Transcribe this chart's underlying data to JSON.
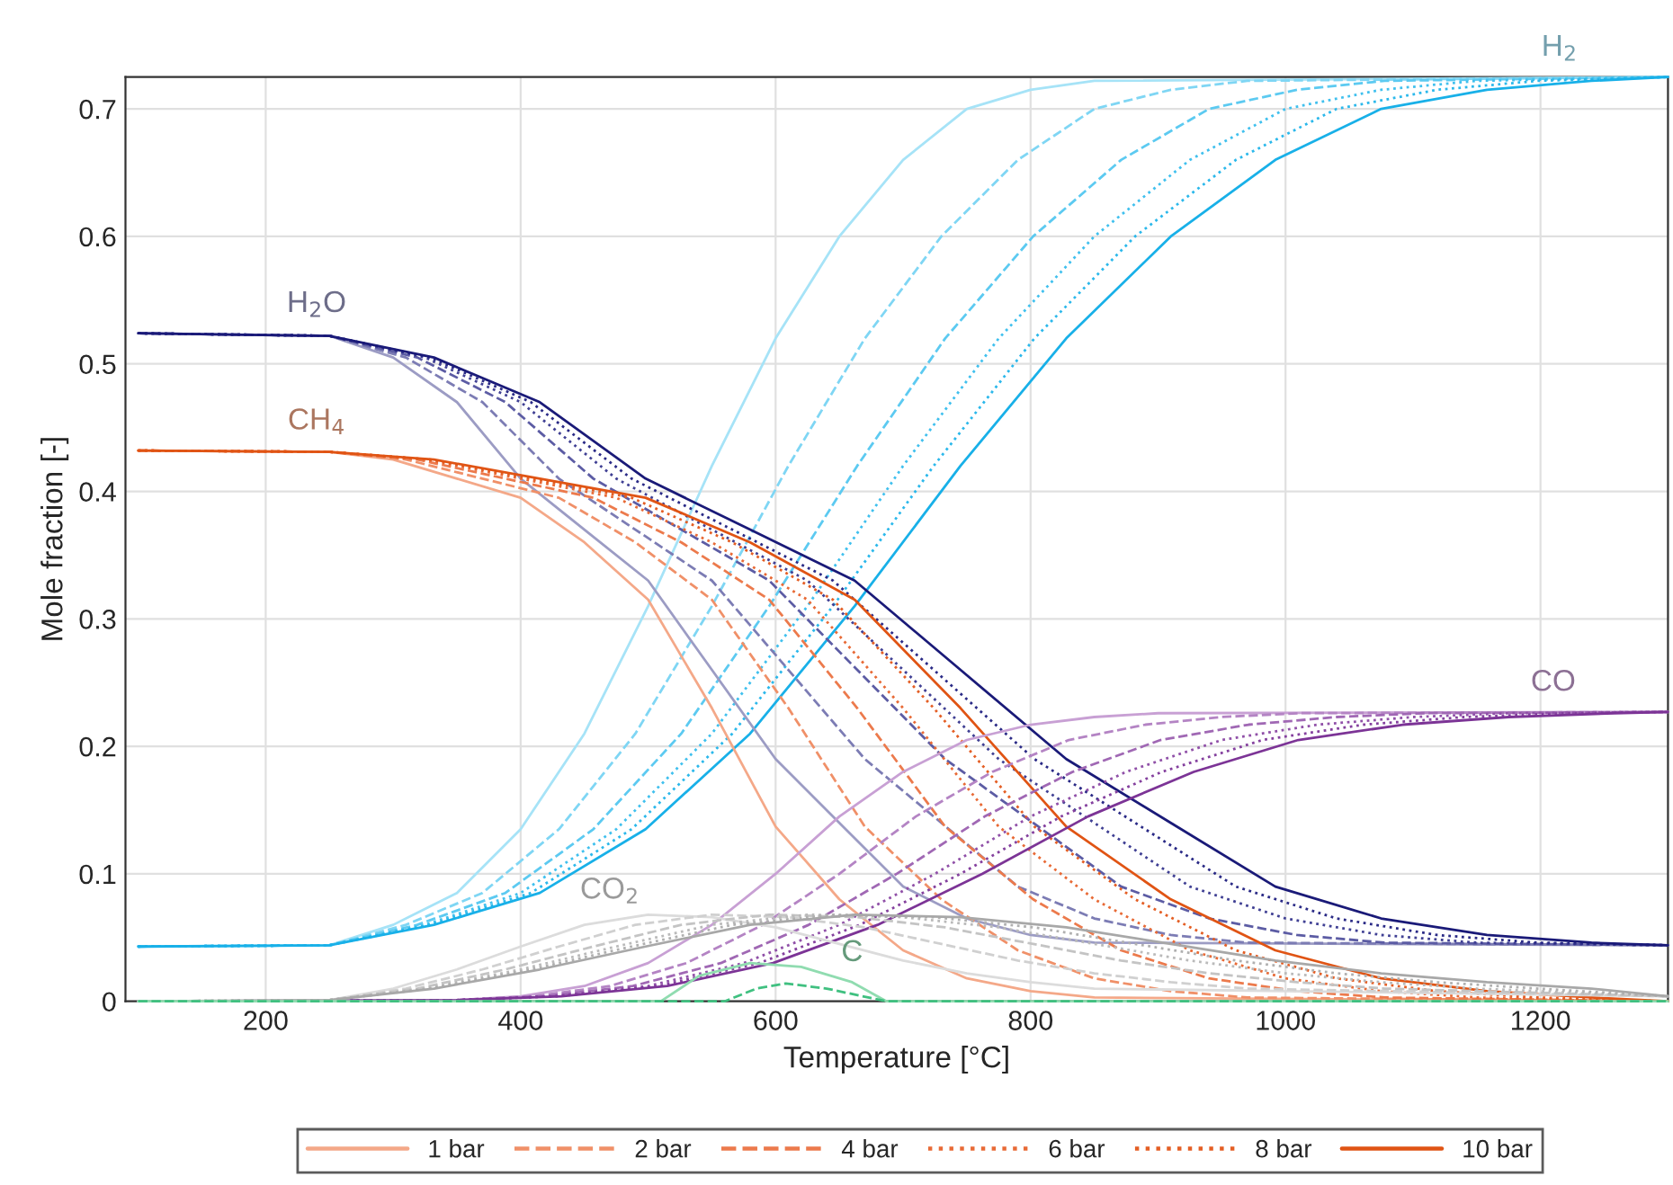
{
  "chart_data": {
    "type": "line",
    "xlabel": "Temperature [°C]",
    "ylabel": "Mole fraction [-]",
    "xlim": [
      90,
      1300
    ],
    "ylim": [
      0,
      0.725
    ],
    "xticks": [
      200,
      400,
      600,
      800,
      1000,
      1200
    ],
    "yticks": [
      0,
      0.1,
      0.2,
      0.3,
      0.4,
      0.5,
      0.6,
      0.7
    ],
    "grid": true,
    "legend": "bottom",
    "annotations": [
      {
        "text": "H$_{2}$",
        "x": 1215,
        "y": 0.725
      },
      {
        "text": "H$_{2}$O",
        "x": 240,
        "y": 0.524
      },
      {
        "text": "CH$_{4}$",
        "x": 240,
        "y": 0.432
      },
      {
        "text": "CO",
        "x": 1210,
        "y": 0.227
      },
      {
        "text": "CO$_{2}$",
        "x": 470,
        "y": 0.064
      },
      {
        "text": "C",
        "x": 660,
        "y": 0.015
      }
    ],
    "series": [
      {
        "type": "line",
        "color": "#a6e3f7",
        "line_style": "solid",
        "x": [
          100,
          250,
          300,
          350,
          400,
          450,
          500,
          550,
          600,
          650,
          700,
          750,
          800,
          850,
          1300
        ],
        "values": [
          0.043,
          0.044,
          0.06,
          0.085,
          0.135,
          0.21,
          0.31,
          0.42,
          0.52,
          0.6,
          0.66,
          0.7,
          0.715,
          0.722,
          0.725
        ]
      },
      {
        "type": "line",
        "color": "#7fd6f4",
        "line_style": "dashed",
        "x": [
          100,
          250,
          310,
          370,
          430,
          490,
          550,
          610,
          670,
          730,
          790,
          850,
          910,
          970,
          1300
        ],
        "values": [
          0.043,
          0.044,
          0.06,
          0.085,
          0.135,
          0.21,
          0.31,
          0.42,
          0.52,
          0.6,
          0.66,
          0.7,
          0.715,
          0.722,
          0.725
        ]
      },
      {
        "type": "line",
        "color": "#5ccaf1",
        "line_style": "dashed",
        "x": [
          100,
          250,
          319,
          388,
          457,
          526,
          595,
          664,
          733,
          802,
          871,
          940,
          1009,
          1078,
          1300
        ],
        "values": [
          0.043,
          0.044,
          0.06,
          0.085,
          0.135,
          0.21,
          0.31,
          0.42,
          0.52,
          0.6,
          0.66,
          0.7,
          0.715,
          0.722,
          0.725
        ]
      },
      {
        "type": "line",
        "color": "#40c0ee",
        "line_style": "dotted",
        "x": [
          100,
          250,
          325,
          400,
          475,
          550,
          625,
          700,
          775,
          850,
          925,
          1000,
          1075,
          1150,
          1300
        ],
        "values": [
          0.043,
          0.044,
          0.06,
          0.085,
          0.135,
          0.21,
          0.31,
          0.42,
          0.52,
          0.6,
          0.66,
          0.7,
          0.715,
          0.722,
          0.725
        ]
      },
      {
        "type": "line",
        "color": "#2bb8eb",
        "line_style": "dotted",
        "x": [
          100,
          250,
          329,
          408,
          487,
          566,
          645,
          724,
          803,
          882,
          961,
          1040,
          1119,
          1198,
          1300
        ],
        "values": [
          0.043,
          0.044,
          0.06,
          0.085,
          0.135,
          0.21,
          0.31,
          0.42,
          0.52,
          0.6,
          0.66,
          0.7,
          0.715,
          0.722,
          0.725
        ]
      },
      {
        "type": "line",
        "color": "#18b0e8",
        "line_style": "solid",
        "x": [
          100,
          250,
          332,
          415,
          498,
          580,
          662,
          745,
          828,
          910,
          992,
          1075,
          1158,
          1240,
          1300
        ],
        "values": [
          0.043,
          0.044,
          0.06,
          0.085,
          0.135,
          0.21,
          0.31,
          0.42,
          0.52,
          0.6,
          0.66,
          0.7,
          0.715,
          0.722,
          0.725
        ]
      },
      {
        "type": "line",
        "color": "#9c9cc4",
        "line_style": "solid",
        "x": [
          100,
          250,
          300,
          350,
          400,
          450,
          500,
          550,
          600,
          650,
          700,
          750,
          800,
          850,
          1300
        ],
        "values": [
          0.524,
          0.522,
          0.505,
          0.47,
          0.41,
          0.37,
          0.33,
          0.26,
          0.19,
          0.14,
          0.09,
          0.065,
          0.052,
          0.046,
          0.044
        ]
      },
      {
        "type": "line",
        "color": "#7c7cb4",
        "line_style": "dashed",
        "x": [
          100,
          250,
          310,
          370,
          430,
          490,
          550,
          610,
          670,
          730,
          790,
          850,
          910,
          970,
          1300
        ],
        "values": [
          0.524,
          0.522,
          0.505,
          0.47,
          0.41,
          0.37,
          0.33,
          0.26,
          0.19,
          0.14,
          0.09,
          0.065,
          0.052,
          0.046,
          0.044
        ]
      },
      {
        "type": "line",
        "color": "#5c5ca4",
        "line_style": "dashed",
        "x": [
          100,
          250,
          319,
          388,
          457,
          526,
          595,
          664,
          733,
          802,
          871,
          940,
          1009,
          1078,
          1300
        ],
        "values": [
          0.524,
          0.522,
          0.505,
          0.47,
          0.41,
          0.37,
          0.33,
          0.26,
          0.19,
          0.14,
          0.09,
          0.065,
          0.052,
          0.046,
          0.044
        ]
      },
      {
        "type": "line",
        "color": "#404094",
        "line_style": "dotted",
        "x": [
          100,
          250,
          325,
          400,
          475,
          550,
          625,
          700,
          775,
          850,
          925,
          1000,
          1075,
          1150,
          1300
        ],
        "values": [
          0.524,
          0.522,
          0.505,
          0.47,
          0.41,
          0.37,
          0.33,
          0.26,
          0.19,
          0.14,
          0.09,
          0.065,
          0.052,
          0.046,
          0.044
        ]
      },
      {
        "type": "line",
        "color": "#2a2a86",
        "line_style": "dotted",
        "x": [
          100,
          250,
          329,
          408,
          487,
          566,
          645,
          724,
          803,
          882,
          961,
          1040,
          1119,
          1198,
          1300
        ],
        "values": [
          0.524,
          0.522,
          0.505,
          0.47,
          0.41,
          0.37,
          0.33,
          0.26,
          0.19,
          0.14,
          0.09,
          0.065,
          0.052,
          0.046,
          0.044
        ]
      },
      {
        "type": "line",
        "color": "#1a1a78",
        "line_style": "solid",
        "x": [
          100,
          250,
          332,
          415,
          498,
          580,
          662,
          745,
          828,
          910,
          992,
          1075,
          1158,
          1240,
          1300
        ],
        "values": [
          0.524,
          0.522,
          0.505,
          0.47,
          0.41,
          0.37,
          0.33,
          0.26,
          0.19,
          0.14,
          0.09,
          0.065,
          0.052,
          0.046,
          0.044
        ]
      },
      {
        "type": "line",
        "name": "1 bar",
        "color": "#f4a888",
        "line_style": "solid",
        "x": [
          100,
          250,
          300,
          350,
          400,
          450,
          500,
          550,
          600,
          650,
          700,
          750,
          800,
          850,
          1300
        ],
        "values": [
          0.432,
          0.431,
          0.425,
          0.41,
          0.395,
          0.36,
          0.315,
          0.23,
          0.137,
          0.08,
          0.04,
          0.018,
          0.008,
          0.003,
          0
        ]
      },
      {
        "type": "line",
        "name": "2 bar",
        "color": "#f09068",
        "line_style": "dashed",
        "x": [
          100,
          250,
          310,
          370,
          430,
          490,
          550,
          610,
          670,
          730,
          790,
          850,
          910,
          970,
          1300
        ],
        "values": [
          0.432,
          0.431,
          0.425,
          0.41,
          0.395,
          0.36,
          0.315,
          0.23,
          0.137,
          0.08,
          0.04,
          0.018,
          0.008,
          0.003,
          0
        ]
      },
      {
        "type": "line",
        "name": "4 bar",
        "color": "#ec7a4c",
        "line_style": "dashed",
        "x": [
          100,
          250,
          319,
          388,
          457,
          526,
          595,
          664,
          733,
          802,
          871,
          940,
          1009,
          1078,
          1300
        ],
        "values": [
          0.432,
          0.431,
          0.425,
          0.41,
          0.395,
          0.36,
          0.315,
          0.23,
          0.137,
          0.08,
          0.04,
          0.018,
          0.008,
          0.003,
          0
        ]
      },
      {
        "type": "line",
        "name": "6 bar",
        "color": "#e86a36",
        "line_style": "dotted",
        "x": [
          100,
          250,
          325,
          400,
          475,
          550,
          625,
          700,
          775,
          850,
          925,
          1000,
          1075,
          1150,
          1300
        ],
        "values": [
          0.432,
          0.431,
          0.425,
          0.41,
          0.395,
          0.36,
          0.315,
          0.23,
          0.137,
          0.08,
          0.04,
          0.018,
          0.008,
          0.003,
          0
        ]
      },
      {
        "type": "line",
        "name": "8 bar",
        "color": "#e45e24",
        "line_style": "dotted",
        "x": [
          100,
          250,
          329,
          408,
          487,
          566,
          645,
          724,
          803,
          882,
          961,
          1040,
          1119,
          1198,
          1300
        ],
        "values": [
          0.432,
          0.431,
          0.425,
          0.41,
          0.395,
          0.36,
          0.315,
          0.23,
          0.137,
          0.08,
          0.04,
          0.018,
          0.008,
          0.003,
          0
        ]
      },
      {
        "type": "line",
        "name": "10 bar",
        "color": "#e05414",
        "line_style": "solid",
        "x": [
          100,
          250,
          332,
          415,
          498,
          580,
          662,
          745,
          828,
          910,
          992,
          1075,
          1158,
          1240,
          1300
        ],
        "values": [
          0.432,
          0.431,
          0.425,
          0.41,
          0.395,
          0.36,
          0.315,
          0.23,
          0.137,
          0.08,
          0.04,
          0.018,
          0.008,
          0.003,
          0
        ]
      },
      {
        "type": "line",
        "color": "#c8a0d4",
        "line_style": "solid",
        "x": [
          100,
          350,
          400,
          450,
          500,
          550,
          600,
          650,
          700,
          750,
          800,
          850,
          900,
          1300
        ],
        "values": [
          0,
          0.001,
          0.004,
          0.012,
          0.03,
          0.06,
          0.1,
          0.145,
          0.18,
          0.205,
          0.217,
          0.223,
          0.226,
          0.227
        ]
      },
      {
        "type": "line",
        "color": "#b484c4",
        "line_style": "dashed",
        "x": [
          100,
          350,
          410,
          470,
          530,
          590,
          650,
          710,
          770,
          830,
          890,
          950,
          1010,
          1300
        ],
        "values": [
          0,
          0.001,
          0.004,
          0.012,
          0.03,
          0.06,
          0.1,
          0.145,
          0.18,
          0.205,
          0.217,
          0.223,
          0.226,
          0.227
        ]
      },
      {
        "type": "line",
        "color": "#a068b4",
        "line_style": "dashed",
        "x": [
          100,
          350,
          419,
          488,
          557,
          626,
          695,
          764,
          833,
          902,
          971,
          1040,
          1109,
          1300
        ],
        "values": [
          0,
          0.001,
          0.004,
          0.012,
          0.03,
          0.06,
          0.1,
          0.145,
          0.18,
          0.205,
          0.217,
          0.223,
          0.226,
          0.227
        ]
      },
      {
        "type": "line",
        "color": "#9050a8",
        "line_style": "dotted",
        "x": [
          100,
          350,
          425,
          500,
          575,
          650,
          725,
          800,
          875,
          950,
          1025,
          1100,
          1175,
          1300
        ],
        "values": [
          0,
          0.001,
          0.004,
          0.012,
          0.03,
          0.06,
          0.1,
          0.145,
          0.18,
          0.205,
          0.217,
          0.223,
          0.226,
          0.227
        ]
      },
      {
        "type": "line",
        "color": "#84409e",
        "line_style": "dotted",
        "x": [
          100,
          350,
          429,
          508,
          587,
          666,
          745,
          824,
          903,
          982,
          1061,
          1140,
          1219,
          1300
        ],
        "values": [
          0,
          0.001,
          0.004,
          0.012,
          0.03,
          0.06,
          0.1,
          0.145,
          0.18,
          0.205,
          0.217,
          0.223,
          0.226,
          0.227
        ]
      },
      {
        "type": "line",
        "color": "#7c3496",
        "line_style": "solid",
        "x": [
          100,
          350,
          432,
          515,
          598,
          680,
          762,
          845,
          928,
          1010,
          1092,
          1175,
          1258,
          1300
        ],
        "values": [
          0,
          0.001,
          0.004,
          0.012,
          0.03,
          0.06,
          0.1,
          0.145,
          0.18,
          0.205,
          0.217,
          0.223,
          0.226,
          0.227
        ]
      },
      {
        "type": "line",
        "color": "#dcdcdc",
        "line_style": "solid",
        "x": [
          100,
          250,
          300,
          350,
          400,
          450,
          500,
          550,
          600,
          650,
          700,
          750,
          800,
          850,
          1300
        ],
        "values": [
          0,
          0.001,
          0.01,
          0.025,
          0.043,
          0.06,
          0.068,
          0.066,
          0.058,
          0.045,
          0.032,
          0.022,
          0.015,
          0.01,
          0.004
        ]
      },
      {
        "type": "line",
        "color": "#d0d0d0",
        "line_style": "dashed",
        "x": [
          100,
          250,
          310,
          370,
          430,
          490,
          550,
          610,
          670,
          730,
          790,
          850,
          910,
          970,
          1300
        ],
        "values": [
          0,
          0.001,
          0.01,
          0.025,
          0.043,
          0.06,
          0.068,
          0.066,
          0.058,
          0.045,
          0.032,
          0.022,
          0.015,
          0.01,
          0.004
        ]
      },
      {
        "type": "line",
        "color": "#c4c4c4",
        "line_style": "dashed",
        "x": [
          100,
          250,
          319,
          388,
          457,
          526,
          595,
          664,
          733,
          802,
          871,
          940,
          1009,
          1078,
          1300
        ],
        "values": [
          0,
          0.001,
          0.01,
          0.025,
          0.043,
          0.06,
          0.068,
          0.066,
          0.058,
          0.045,
          0.032,
          0.022,
          0.015,
          0.01,
          0.004
        ]
      },
      {
        "type": "line",
        "color": "#bababa",
        "line_style": "dotted",
        "x": [
          100,
          250,
          325,
          400,
          475,
          550,
          625,
          700,
          775,
          850,
          925,
          1000,
          1075,
          1150,
          1300
        ],
        "values": [
          0,
          0.001,
          0.01,
          0.025,
          0.043,
          0.06,
          0.068,
          0.066,
          0.058,
          0.045,
          0.032,
          0.022,
          0.015,
          0.01,
          0.004
        ]
      },
      {
        "type": "line",
        "color": "#b0b0b0",
        "line_style": "dotted",
        "x": [
          100,
          250,
          329,
          408,
          487,
          566,
          645,
          724,
          803,
          882,
          961,
          1040,
          1119,
          1198,
          1300
        ],
        "values": [
          0,
          0.001,
          0.01,
          0.025,
          0.043,
          0.06,
          0.068,
          0.066,
          0.058,
          0.045,
          0.032,
          0.022,
          0.015,
          0.01,
          0.004
        ]
      },
      {
        "type": "line",
        "color": "#a8a8a8",
        "line_style": "solid",
        "x": [
          100,
          250,
          332,
          415,
          498,
          580,
          662,
          745,
          828,
          910,
          992,
          1075,
          1158,
          1240,
          1300
        ],
        "values": [
          0,
          0.001,
          0.01,
          0.025,
          0.043,
          0.06,
          0.068,
          0.066,
          0.058,
          0.045,
          0.032,
          0.022,
          0.015,
          0.01,
          0.004
        ]
      },
      {
        "type": "line",
        "color": "#90dcb0",
        "line_style": "solid",
        "x": [
          100,
          510,
          540,
          580,
          620,
          660,
          687,
          1300
        ],
        "values": [
          0,
          0,
          0.02,
          0.03,
          0.027,
          0.015,
          0,
          0
        ]
      },
      {
        "type": "line",
        "color": "#40c080",
        "line_style": "dashed",
        "x": [
          100,
          560,
          585,
          608,
          640,
          687,
          1300
        ],
        "values": [
          0,
          0,
          0.01,
          0.014,
          0.01,
          0,
          0
        ]
      }
    ]
  }
}
